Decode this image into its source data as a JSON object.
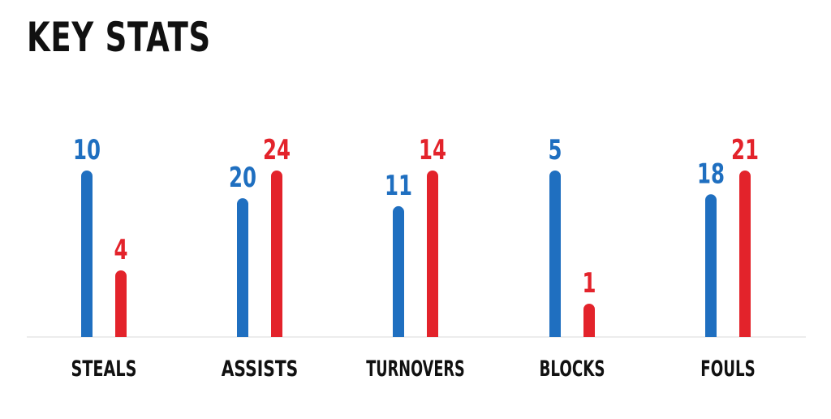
{
  "title": "KEY STATS",
  "colors": {
    "series_a": "#1f6fc0",
    "series_b": "#e3232b",
    "baseline": "#e6e6e6",
    "text": "#111111"
  },
  "chart_data": {
    "type": "bar",
    "title": "KEY STATS",
    "categories": [
      "STEALS",
      "ASSISTS",
      "TURNOVERS",
      "BLOCKS",
      "FOULS"
    ],
    "series": [
      {
        "color": "#1f6fc0",
        "values": [
          10,
          20,
          11,
          5,
          18
        ]
      },
      {
        "color": "#e3232b",
        "values": [
          4,
          24,
          14,
          1,
          21
        ]
      }
    ],
    "scaling": "per-category",
    "grid": false,
    "legend": "none"
  }
}
